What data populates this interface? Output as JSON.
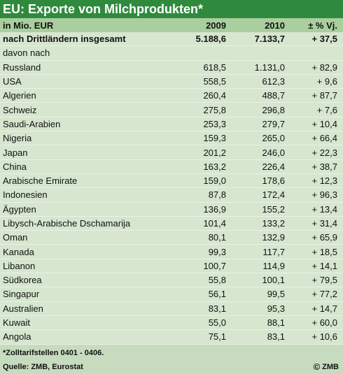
{
  "title": "EU: Exporte von Milchprodukten*",
  "header": {
    "unit": "in Mio. EUR",
    "col1": "2009",
    "col2": "2010",
    "col3": "± % Vj."
  },
  "total": {
    "label": "nach Drittländern insgesamt",
    "v2009": "5.188,6",
    "v2010": "7.133,7",
    "change": "+ 37,5"
  },
  "subheading": "davon nach",
  "rows": [
    {
      "label": "Russland",
      "v2009": "618,5",
      "v2010": "1.131,0",
      "change": "+ 82,9"
    },
    {
      "label": "USA",
      "v2009": "558,5",
      "v2010": "612,3",
      "change": "+ 9,6"
    },
    {
      "label": "Algerien",
      "v2009": "260,4",
      "v2010": "488,7",
      "change": "+ 87,7"
    },
    {
      "label": "Schweiz",
      "v2009": "275,8",
      "v2010": "296,8",
      "change": "+ 7,6"
    },
    {
      "label": "Saudi-Arabien",
      "v2009": "253,3",
      "v2010": "279,7",
      "change": "+ 10,4"
    },
    {
      "label": "Nigeria",
      "v2009": "159,3",
      "v2010": "265,0",
      "change": "+ 66,4"
    },
    {
      "label": "Japan",
      "v2009": "201,2",
      "v2010": "246,0",
      "change": "+ 22,3"
    },
    {
      "label": "China",
      "v2009": "163,2",
      "v2010": "226,4",
      "change": "+ 38,7"
    },
    {
      "label": "Arabische Emirate",
      "v2009": "159,0",
      "v2010": "178,6",
      "change": "+ 12,3"
    },
    {
      "label": "Indonesien",
      "v2009": "87,8",
      "v2010": "172,4",
      "change": "+ 96,3"
    },
    {
      "label": "Ägypten",
      "v2009": "136,9",
      "v2010": "155,2",
      "change": "+ 13,4"
    },
    {
      "label": "Libysch-Arabische Dschamarija",
      "v2009": "101,4",
      "v2010": "133,2",
      "change": "+ 31,4"
    },
    {
      "label": "Oman",
      "v2009": "80,1",
      "v2010": "132,9",
      "change": "+ 65,9"
    },
    {
      "label": "Kanada",
      "v2009": "99,3",
      "v2010": "117,7",
      "change": "+ 18,5"
    },
    {
      "label": "Libanon",
      "v2009": "100,7",
      "v2010": "114,9",
      "change": "+ 14,1"
    },
    {
      "label": "Südkorea",
      "v2009": "55,8",
      "v2010": "100,1",
      "change": "+ 79,5"
    },
    {
      "label": "Singapur",
      "v2009": "56,1",
      "v2010": "99,5",
      "change": "+ 77,2"
    },
    {
      "label": "Australien",
      "v2009": "83,1",
      "v2010": "95,3",
      "change": "+ 14,7"
    },
    {
      "label": "Kuwait",
      "v2009": "55,0",
      "v2010": "88,1",
      "change": "+ 60,0"
    },
    {
      "label": "Angola",
      "v2009": "75,1",
      "v2010": "83,1",
      "change": "+ 10,6"
    }
  ],
  "footnote": "*Zolltarifstellen 0401 - 0406.",
  "source": "Quelle: ZMB, Eurostat",
  "copyright": {
    "symbol": "©",
    "text": "ZMB"
  }
}
